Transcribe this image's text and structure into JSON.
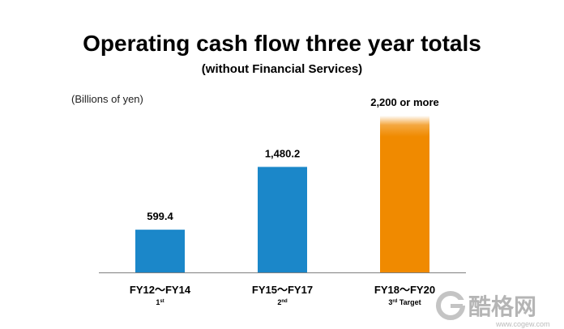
{
  "chart_data": {
    "type": "bar",
    "title": "Operating cash flow three year totals",
    "subtitle": "(without Financial Services)",
    "unit_label": "(Billions of yen)",
    "categories": [
      "FY12～FY14",
      "FY15～FY17",
      "FY18～FY20"
    ],
    "ordinals": [
      {
        "num": "1",
        "suffix": "st",
        "rest": ""
      },
      {
        "num": "2",
        "suffix": "nd",
        "rest": ""
      },
      {
        "num": "3",
        "suffix": "rd",
        "rest": " Target"
      }
    ],
    "values": [
      599.4,
      1480.2,
      2200
    ],
    "value_labels": [
      "599.4",
      "1,480.2",
      "2,200 or more"
    ],
    "bar_colors": [
      "#1b87c9",
      "#1b87c9",
      "#f08a00"
    ],
    "target_fade": [
      false,
      false,
      true
    ],
    "ylim": [
      0,
      2200
    ],
    "grid": false,
    "axis_color": "#7f7f7f"
  },
  "watermark": {
    "text": "酷格网",
    "url": "www.cogew.com"
  }
}
